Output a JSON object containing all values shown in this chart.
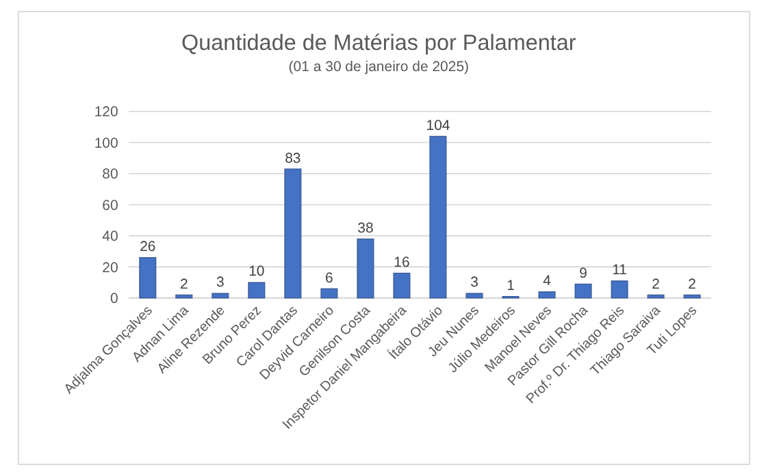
{
  "chart_data": {
    "type": "bar",
    "title": "Quantidade de Matérias por Palamentar",
    "subtitle": "(01 a 30 de janeiro de 2025)",
    "categories": [
      "Adjalma Gonçalves",
      "Adnan Lima",
      "Aline Rezende",
      "Bruno Perez",
      "Carol Dantas",
      "Deyvid Carneiro",
      "Genilson Costa",
      "Inspetor Daniel Mangabeira",
      "Ítalo Otávio",
      "Jeu Nunes",
      "Júlio Medeiros",
      "Manoel Neves",
      "Pastor Gill Rocha",
      "Prof.º Dr. Thiago Reis",
      "Thiago Saraiva",
      "Tuti Lopes"
    ],
    "values": [
      26,
      2,
      3,
      10,
      83,
      6,
      38,
      16,
      104,
      3,
      1,
      4,
      9,
      11,
      2,
      2
    ],
    "color": "#4472c4",
    "ylim": [
      0,
      120
    ],
    "yticks": [
      0,
      20,
      40,
      60,
      80,
      100,
      120
    ],
    "grid": "y",
    "data_labels": true
  }
}
